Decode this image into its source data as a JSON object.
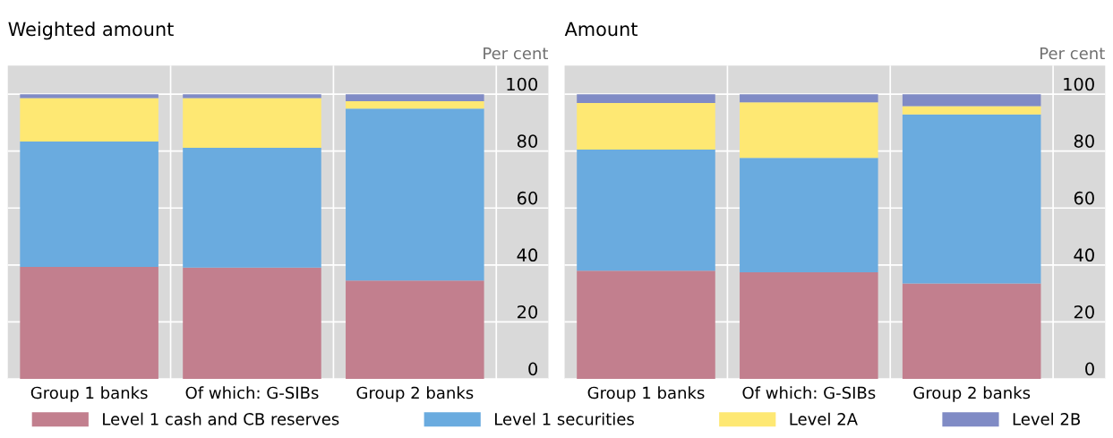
{
  "chart_data": [
    {
      "type": "bar",
      "title": "Weighted amount",
      "ylabel": "Per cent",
      "stacked": true,
      "categories": [
        "Group 1 banks",
        "Of which: G-SIBs",
        "Group 2 banks"
      ],
      "ylim": [
        0,
        110
      ],
      "yticks": [
        0,
        20,
        40,
        60,
        80,
        100
      ],
      "grid": true,
      "legend": "bottom",
      "series": [
        {
          "name": "Level 1 cash and CB reserves",
          "color": "#c27f8e",
          "values": [
            39.3,
            39.1,
            34.5
          ]
        },
        {
          "name": "Level 1 securities",
          "color": "#6aabdf",
          "values": [
            44.1,
            42.1,
            60.4
          ]
        },
        {
          "name": "Level 2A",
          "color": "#fee873",
          "values": [
            15.2,
            17.4,
            2.6
          ]
        },
        {
          "name": "Level 2B",
          "color": "#808bc5",
          "values": [
            1.4,
            1.4,
            2.5
          ]
        }
      ]
    },
    {
      "type": "bar",
      "title": "Amount",
      "ylabel": "Per cent",
      "stacked": true,
      "categories": [
        "Group 1 banks",
        "Of which: G-SIBs",
        "Group 2 banks"
      ],
      "ylim": [
        0,
        110
      ],
      "yticks": [
        0,
        20,
        40,
        60,
        80,
        100
      ],
      "grid": true,
      "series": [
        {
          "color": "#c27f8e",
          "values": [
            38.0,
            37.4,
            33.5
          ]
        },
        {
          "color": "#6aabdf",
          "values": [
            42.5,
            40.2,
            59.4
          ]
        },
        {
          "color": "#fee873",
          "values": [
            16.4,
            19.5,
            2.9
          ]
        },
        {
          "color": "#808bc5",
          "values": [
            3.1,
            2.9,
            4.2
          ]
        }
      ]
    }
  ]
}
